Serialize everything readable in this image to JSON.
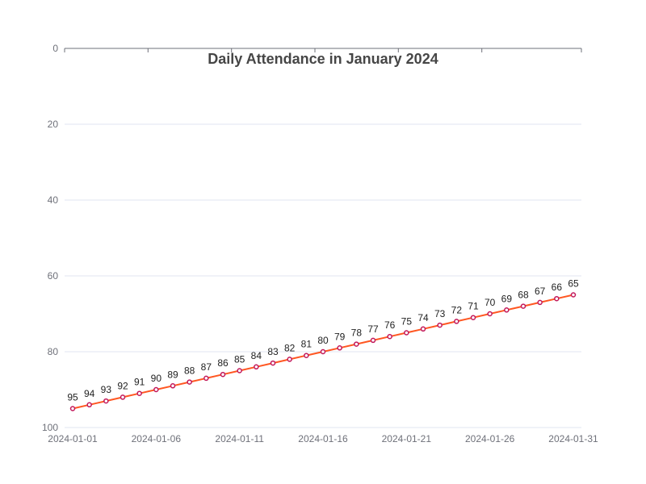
{
  "chart_data": {
    "type": "line",
    "title": "Daily Attendance in January 2024",
    "xlabel": "",
    "ylabel": "",
    "x": [
      "2024-01-01",
      "2024-01-02",
      "2024-01-03",
      "2024-01-04",
      "2024-01-05",
      "2024-01-06",
      "2024-01-07",
      "2024-01-08",
      "2024-01-09",
      "2024-01-10",
      "2024-01-11",
      "2024-01-12",
      "2024-01-13",
      "2024-01-14",
      "2024-01-15",
      "2024-01-16",
      "2024-01-17",
      "2024-01-18",
      "2024-01-19",
      "2024-01-20",
      "2024-01-21",
      "2024-01-22",
      "2024-01-23",
      "2024-01-24",
      "2024-01-25",
      "2024-01-26",
      "2024-01-27",
      "2024-01-28",
      "2024-01-29",
      "2024-01-30",
      "2024-01-31"
    ],
    "x_tick_labels": [
      "2024-01-01",
      "2024-01-06",
      "2024-01-11",
      "2024-01-16",
      "2024-01-21",
      "2024-01-26",
      "2024-01-31"
    ],
    "series": [
      {
        "values": [
          95,
          94,
          93,
          92,
          91,
          90,
          89,
          88,
          87,
          86,
          85,
          84,
          83,
          82,
          81,
          80,
          79,
          78,
          77,
          76,
          75,
          74,
          73,
          72,
          71,
          70,
          69,
          68,
          67,
          66,
          65
        ]
      }
    ],
    "ylim": [
      0,
      100
    ],
    "y_inverted": true,
    "y_ticks": [
      0,
      20,
      40,
      60,
      80,
      100
    ],
    "grid": true,
    "colors": {
      "line": "#ff5722",
      "marker": "#c2185b",
      "grid": "#e0e6f1",
      "axis": "#6e7079"
    }
  }
}
